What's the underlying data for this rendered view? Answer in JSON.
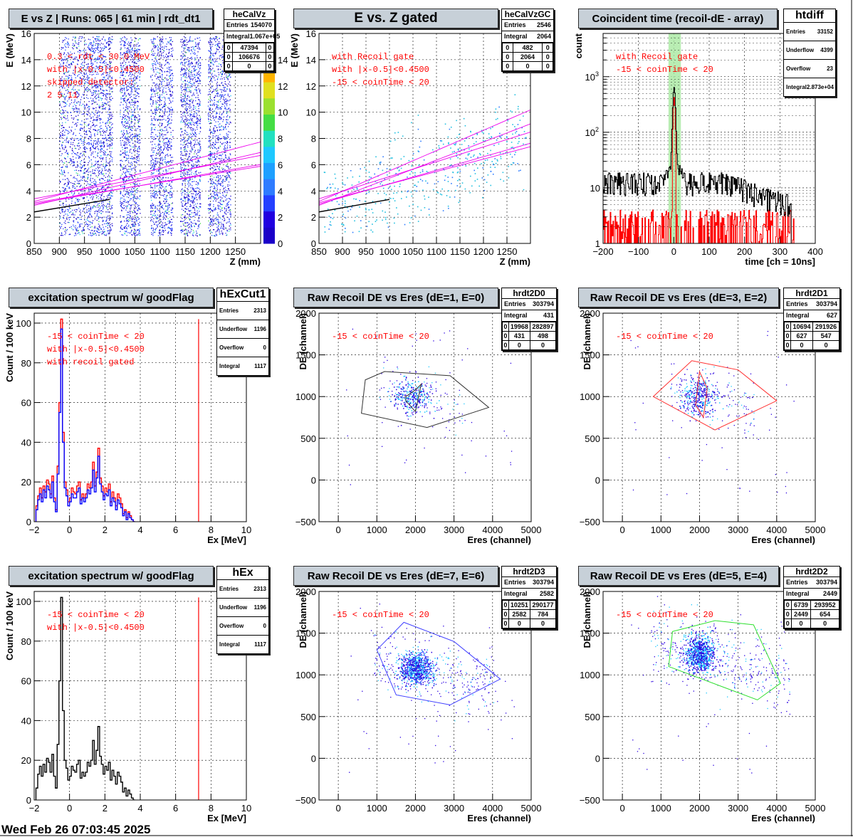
{
  "date_stamp": "Wed Feb 26 07:03:45 2025",
  "chart_data": [
    {
      "id": "heCalVz",
      "type": "heatmap",
      "title": "E vs Z | Runs: 065 | 61 min | rdt_dt1",
      "xlabel": "Z (mm)",
      "ylabel": "E (MeV)",
      "xlim": [
        850,
        1300
      ],
      "ylim": [
        0,
        16
      ],
      "xticks": [
        850,
        900,
        950,
        1000,
        1050,
        1100,
        1150,
        1200,
        1250
      ],
      "yticks": [
        0,
        2,
        4,
        6,
        8,
        10,
        12,
        14,
        16
      ],
      "grid": true,
      "colorbar": {
        "ticks": [
          0,
          2,
          4,
          6,
          8,
          10,
          12,
          14
        ]
      },
      "detector_columns": [
        [
          900,
          960
        ],
        [
          960,
          1005
        ],
        [
          1020,
          1060
        ],
        [
          1080,
          1125
        ],
        [
          1140,
          1180
        ],
        [
          1195,
          1240
        ]
      ],
      "notes": [
        "0.3 < rdt < 30.0 MeV",
        "with |x-0.5|<0.4500",
        "skipped detector:",
        "2   5  11"
      ],
      "stats": {
        "name": "heCalVz",
        "rows": [
          [
            "Entries",
            "154070"
          ],
          [
            "Integral",
            "1.067e+05"
          ]
        ],
        "grid": [
          [
            "0",
            "47394",
            "0"
          ],
          [
            "0",
            "106676",
            "0"
          ],
          [
            "0",
            "0",
            "0"
          ]
        ]
      }
    },
    {
      "id": "heCalVzGC",
      "type": "scatter",
      "title": "E vs. Z gated",
      "xlabel": "Z (mm)",
      "ylabel": "E (MeV)",
      "xlim": [
        850,
        1300
      ],
      "ylim": [
        0,
        16
      ],
      "xticks": [
        850,
        900,
        950,
        1000,
        1050,
        1100,
        1150,
        1200,
        1250
      ],
      "yticks": [
        0,
        2,
        4,
        6,
        8,
        10,
        12,
        14,
        16
      ],
      "grid": true,
      "notes": [
        "with Recoil gate",
        "with |x-0.5|<0.4500",
        "-15 < coinTime < 20"
      ],
      "stats": {
        "name": "heCalVzGC",
        "rows": [
          [
            "Entries",
            "2546"
          ],
          [
            "Integral",
            "2064"
          ]
        ],
        "grid": [
          [
            "0",
            "482",
            "0"
          ],
          [
            "0",
            "2064",
            "0"
          ],
          [
            "0",
            "0",
            "0"
          ]
        ]
      }
    },
    {
      "id": "htdiff",
      "type": "line",
      "title": "Coincident time (recoil-dE - array)",
      "xlabel": "time [ch = 10ns]",
      "ylabel": "count",
      "xlim": [
        -200,
        400
      ],
      "ylim": [
        1,
        6000
      ],
      "yscale": "log",
      "xticks": [
        -200,
        -100,
        0,
        100,
        200,
        300,
        400
      ],
      "yticks": [
        1,
        10,
        100,
        1000
      ],
      "ytick_labels": [
        "1",
        "10",
        "10^2",
        "10^3"
      ],
      "gate": [
        -15,
        20
      ],
      "grid": true,
      "notes": [
        "with Recoil gate",
        "-15 < coinTime < 20"
      ],
      "stats": {
        "name": "htdiff",
        "rows": [
          [
            "Entries",
            "33152"
          ],
          [
            "Underflow",
            "4399"
          ],
          [
            "Overflow",
            "23"
          ],
          [
            "Integral",
            "2.873e+04"
          ]
        ]
      }
    },
    {
      "id": "hExCut1",
      "type": "bar",
      "title": "excitation spectrum w/ goodFlag",
      "xlabel": "Ex [MeV]",
      "ylabel": "Count / 100 keV",
      "xlim": [
        -2,
        10
      ],
      "ylim": [
        0,
        105
      ],
      "xticks": [
        -2,
        0,
        2,
        4,
        6,
        8,
        10
      ],
      "yticks": [
        0,
        20,
        40,
        60,
        80,
        100
      ],
      "marker_x": 7.3,
      "grid": true,
      "bin_start": -1.9,
      "bin_width": 0.1,
      "series": [
        {
          "name": "",
          "color": "#ff0000",
          "values": [
            8,
            13,
            17,
            12,
            18,
            15,
            21,
            19,
            14,
            23,
            12,
            6,
            28,
            60,
            102,
            45,
            20,
            16,
            10,
            12,
            17,
            15,
            14,
            18,
            20,
            11,
            14,
            12,
            14,
            19,
            17,
            20,
            30,
            18,
            25,
            37,
            22,
            18,
            13,
            17,
            15,
            19,
            10,
            15,
            12,
            8,
            14,
            12,
            9,
            4,
            6,
            2,
            5,
            3,
            1,
            0
          ]
        },
        {
          "name": "",
          "color": "#0000ff",
          "values": [
            6,
            11,
            14,
            10,
            16,
            12,
            18,
            16,
            12,
            20,
            10,
            5,
            24,
            55,
            97,
            40,
            17,
            13,
            8,
            10,
            14,
            12,
            12,
            15,
            17,
            9,
            12,
            10,
            12,
            16,
            14,
            17,
            26,
            15,
            22,
            33,
            19,
            15,
            11,
            14,
            13,
            16,
            8,
            12,
            10,
            6,
            11,
            9,
            7,
            3,
            5,
            1,
            4,
            2,
            1,
            0
          ]
        }
      ],
      "notes": [
        "-15 < coinTime < 20",
        "with |x-0.5|<0.4500",
        "with recoil gated"
      ],
      "stats": {
        "name": "hExCut1",
        "rows": [
          [
            "Entries",
            "2313"
          ],
          [
            "Underflow",
            "1196"
          ],
          [
            "Overflow",
            "0"
          ],
          [
            "Integral",
            "1117"
          ]
        ]
      }
    },
    {
      "id": "hrdt2D0",
      "type": "scatter",
      "title": "Raw Recoil DE vs Eres (dE=1, E=0)",
      "xlabel": "Eres (channel)",
      "ylabel": "DE (channel)",
      "xlim": [
        -500,
        5000
      ],
      "ylim": [
        -500,
        2000
      ],
      "xticks": [
        0,
        1000,
        2000,
        3000,
        4000,
        5000
      ],
      "yticks": [
        -500,
        0,
        500,
        1000,
        1500,
        2000
      ],
      "grid": true,
      "gate_color": "#333333",
      "gate_polygon": [
        [
          700,
          1200
        ],
        [
          1200,
          1300
        ],
        [
          2900,
          1250
        ],
        [
          3900,
          870
        ],
        [
          2300,
          630
        ],
        [
          600,
          800
        ]
      ],
      "inner_polygon": [
        [
          1750,
          1000
        ],
        [
          2000,
          1080
        ],
        [
          2150,
          1150
        ],
        [
          2000,
          820
        ],
        [
          1750,
          950
        ]
      ],
      "cluster": {
        "x": 1900,
        "y": 1000,
        "sx": 250,
        "sy": 100,
        "count": 260,
        "spread_x": 1200,
        "spread_y": 350
      },
      "notes": [
        "-15 < coinTime < 20"
      ],
      "stats": {
        "name": "hrdt2D0",
        "rows": [
          [
            "Entries",
            "303794"
          ],
          [
            "Integral",
            "431"
          ]
        ],
        "grid": [
          [
            "0",
            "19968",
            "282897"
          ],
          [
            "0",
            "431",
            "498"
          ],
          [
            "0",
            "0",
            "0"
          ]
        ]
      }
    },
    {
      "id": "hrdt2D1",
      "type": "scatter",
      "title": "Raw Recoil DE vs Eres (dE=3, E=2)",
      "xlabel": "Eres (channel)",
      "ylabel": "DE (channel)",
      "xlim": [
        -500,
        5000
      ],
      "ylim": [
        -500,
        2000
      ],
      "xticks": [
        0,
        1000,
        2000,
        3000,
        4000,
        5000
      ],
      "yticks": [
        -500,
        0,
        500,
        1000,
        1500,
        2000
      ],
      "grid": true,
      "gate_color": "#ff3030",
      "gate_polygon": [
        [
          800,
          1000
        ],
        [
          1800,
          1430
        ],
        [
          3000,
          1320
        ],
        [
          4000,
          950
        ],
        [
          2400,
          600
        ],
        [
          800,
          1000
        ]
      ],
      "inner_polygon": [
        [
          1900,
          900
        ],
        [
          2000,
          1300
        ],
        [
          2200,
          1100
        ],
        [
          2100,
          750
        ]
      ],
      "cluster": {
        "x": 2000,
        "y": 1000,
        "sx": 220,
        "sy": 120,
        "count": 320,
        "spread_x": 1100,
        "spread_y": 320
      },
      "notes": [
        "-15 < coinTime < 20"
      ],
      "stats": {
        "name": "hrdt2D1",
        "rows": [
          [
            "Entries",
            "303794"
          ],
          [
            "Integral",
            "627"
          ]
        ],
        "grid": [
          [
            "0",
            "10694",
            "291926"
          ],
          [
            "0",
            "627",
            "547"
          ],
          [
            "0",
            "0",
            "0"
          ]
        ]
      }
    },
    {
      "id": "hEx",
      "type": "bar",
      "title": "excitation spectrum w/ goodFlag",
      "xlabel": "Ex [MeV]",
      "ylabel": "Count / 100 keV",
      "xlim": [
        -2,
        10
      ],
      "ylim": [
        0,
        105
      ],
      "xticks": [
        -2,
        0,
        2,
        4,
        6,
        8,
        10
      ],
      "yticks": [
        0,
        20,
        40,
        60,
        80,
        100
      ],
      "marker_x": 7.3,
      "grid": true,
      "bin_start": -1.9,
      "bin_width": 0.1,
      "series": [
        {
          "name": "",
          "color": "#000000",
          "values": [
            6,
            13,
            17,
            12,
            18,
            14,
            21,
            19,
            14,
            23,
            12,
            6,
            28,
            60,
            102,
            45,
            20,
            16,
            10,
            12,
            17,
            15,
            14,
            18,
            20,
            11,
            14,
            12,
            14,
            19,
            17,
            20,
            30,
            18,
            25,
            37,
            22,
            18,
            13,
            17,
            15,
            19,
            10,
            15,
            12,
            8,
            14,
            12,
            9,
            4,
            6,
            2,
            5,
            3,
            1,
            0
          ]
        }
      ],
      "notes": [
        "-15 < coinTime < 20",
        "with |x-0.5|<0.4500"
      ],
      "stats": {
        "name": "hEx",
        "rows": [
          [
            "Entries",
            "2313"
          ],
          [
            "Underflow",
            "1196"
          ],
          [
            "Overflow",
            "0"
          ],
          [
            "Integral",
            "1117"
          ]
        ]
      }
    },
    {
      "id": "hrdt2D3",
      "type": "scatter",
      "title": "Raw Recoil DE vs Eres (dE=7, E=6)",
      "xlabel": "Eres (channel)",
      "ylabel": "DE (channel)",
      "xlim": [
        -500,
        5000
      ],
      "ylim": [
        -500,
        2000
      ],
      "xticks": [
        0,
        1000,
        2000,
        3000,
        4000,
        5000
      ],
      "yticks": [
        -500,
        0,
        500,
        1000,
        1500,
        2000
      ],
      "grid": true,
      "gate_color": "#4040ff",
      "gate_polygon": [
        [
          1000,
          1300
        ],
        [
          1700,
          1630
        ],
        [
          3000,
          1400
        ],
        [
          4200,
          950
        ],
        [
          2900,
          640
        ],
        [
          1500,
          760
        ],
        [
          1000,
          1300
        ]
      ],
      "inner_polygon": [
        [
          1800,
          1150
        ],
        [
          2200,
          1280
        ],
        [
          2400,
          1050
        ],
        [
          2100,
          900
        ],
        [
          1800,
          1000
        ]
      ],
      "cluster": {
        "x": 2000,
        "y": 1080,
        "sx": 200,
        "sy": 90,
        "count": 700,
        "spread_x": 1600,
        "spread_y": 380
      },
      "notes": [
        "-15 < coinTime < 20"
      ],
      "stats": {
        "name": "hrdt2D3",
        "rows": [
          [
            "Entries",
            "303794"
          ],
          [
            "Integral",
            "2582"
          ]
        ],
        "grid": [
          [
            "0",
            "10251",
            "290177"
          ],
          [
            "0",
            "2582",
            "784"
          ],
          [
            "0",
            "0",
            "0"
          ]
        ]
      }
    },
    {
      "id": "hrdt2D2",
      "type": "scatter",
      "title": "Raw Recoil DE vs Eres (dE=5, E=4)",
      "xlabel": "Eres (channel)",
      "ylabel": "DE (channel)",
      "xlim": [
        -500,
        5000
      ],
      "ylim": [
        -500,
        2000
      ],
      "xticks": [
        0,
        1000,
        2000,
        3000,
        4000,
        5000
      ],
      "yticks": [
        -500,
        0,
        500,
        1000,
        1500,
        2000
      ],
      "grid": true,
      "gate_color": "#30e030",
      "gate_polygon": [
        [
          1300,
          1520
        ],
        [
          2400,
          1650
        ],
        [
          3400,
          1600
        ],
        [
          4100,
          900
        ],
        [
          3500,
          700
        ],
        [
          1200,
          1100
        ],
        [
          1300,
          1520
        ]
      ],
      "inner_polygon": [],
      "cluster": {
        "x": 2000,
        "y": 1250,
        "sx": 200,
        "sy": 110,
        "count": 800,
        "spread_x": 1800,
        "spread_y": 420
      },
      "notes": [
        "-15 < coinTime < 20"
      ],
      "stats": {
        "name": "hrdt2D2",
        "rows": [
          [
            "Entries",
            "303794"
          ],
          [
            "Integral",
            "2449"
          ]
        ],
        "grid": [
          [
            "0",
            "6739",
            "293952"
          ],
          [
            "0",
            "2449",
            "654"
          ],
          [
            "0",
            "0",
            "0"
          ]
        ]
      }
    }
  ]
}
